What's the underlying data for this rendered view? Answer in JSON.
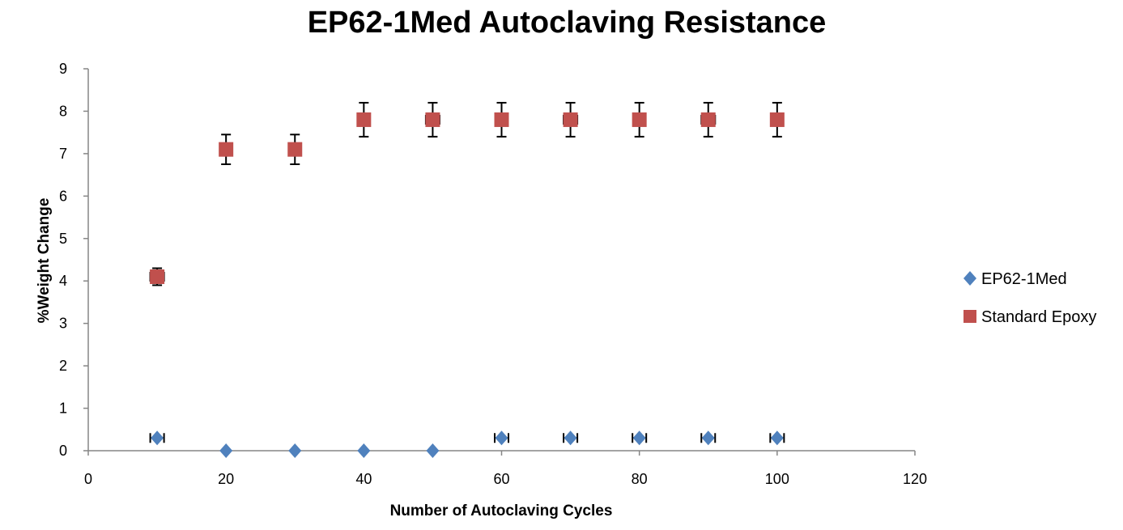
{
  "chart_data": {
    "type": "scatter",
    "title": "EP62-1Med Autoclaving Resistance",
    "xlabel": "Number of Autoclaving  Cycles",
    "ylabel": "%Weight Change",
    "xlim": [
      0,
      120
    ],
    "ylim": [
      0,
      9
    ],
    "xticks": [
      "0",
      "20",
      "40",
      "60",
      "80",
      "100",
      "120"
    ],
    "yticks": [
      "0",
      "1",
      "2",
      "3",
      "4",
      "5",
      "6",
      "7",
      "8",
      "9"
    ],
    "grid": false,
    "legend_position": "right",
    "series": [
      {
        "name": "EP62-1Med",
        "marker": "diamond",
        "color": "#4F81BD",
        "x": [
          10,
          20,
          30,
          40,
          50,
          60,
          70,
          80,
          90,
          100
        ],
        "y": [
          0.3,
          0,
          0,
          0,
          0,
          0.3,
          0.3,
          0.3,
          0.3,
          0.3
        ],
        "x_error": [
          1,
          0,
          0,
          0,
          0,
          1,
          1,
          1,
          1,
          1
        ]
      },
      {
        "name": "Standard Epoxy",
        "marker": "square",
        "color": "#C0504D",
        "x": [
          10,
          20,
          30,
          40,
          50,
          60,
          70,
          80,
          90,
          100
        ],
        "y": [
          4.1,
          7.1,
          7.1,
          7.8,
          7.8,
          7.8,
          7.8,
          7.8,
          7.8,
          7.8
        ],
        "y_error": [
          0.2,
          0.35,
          0.35,
          0.4,
          0.4,
          0.4,
          0.4,
          0.4,
          0.4,
          0.4
        ],
        "x_error": [
          1,
          0,
          0,
          0,
          1,
          0,
          1,
          0,
          1,
          0
        ]
      }
    ]
  }
}
